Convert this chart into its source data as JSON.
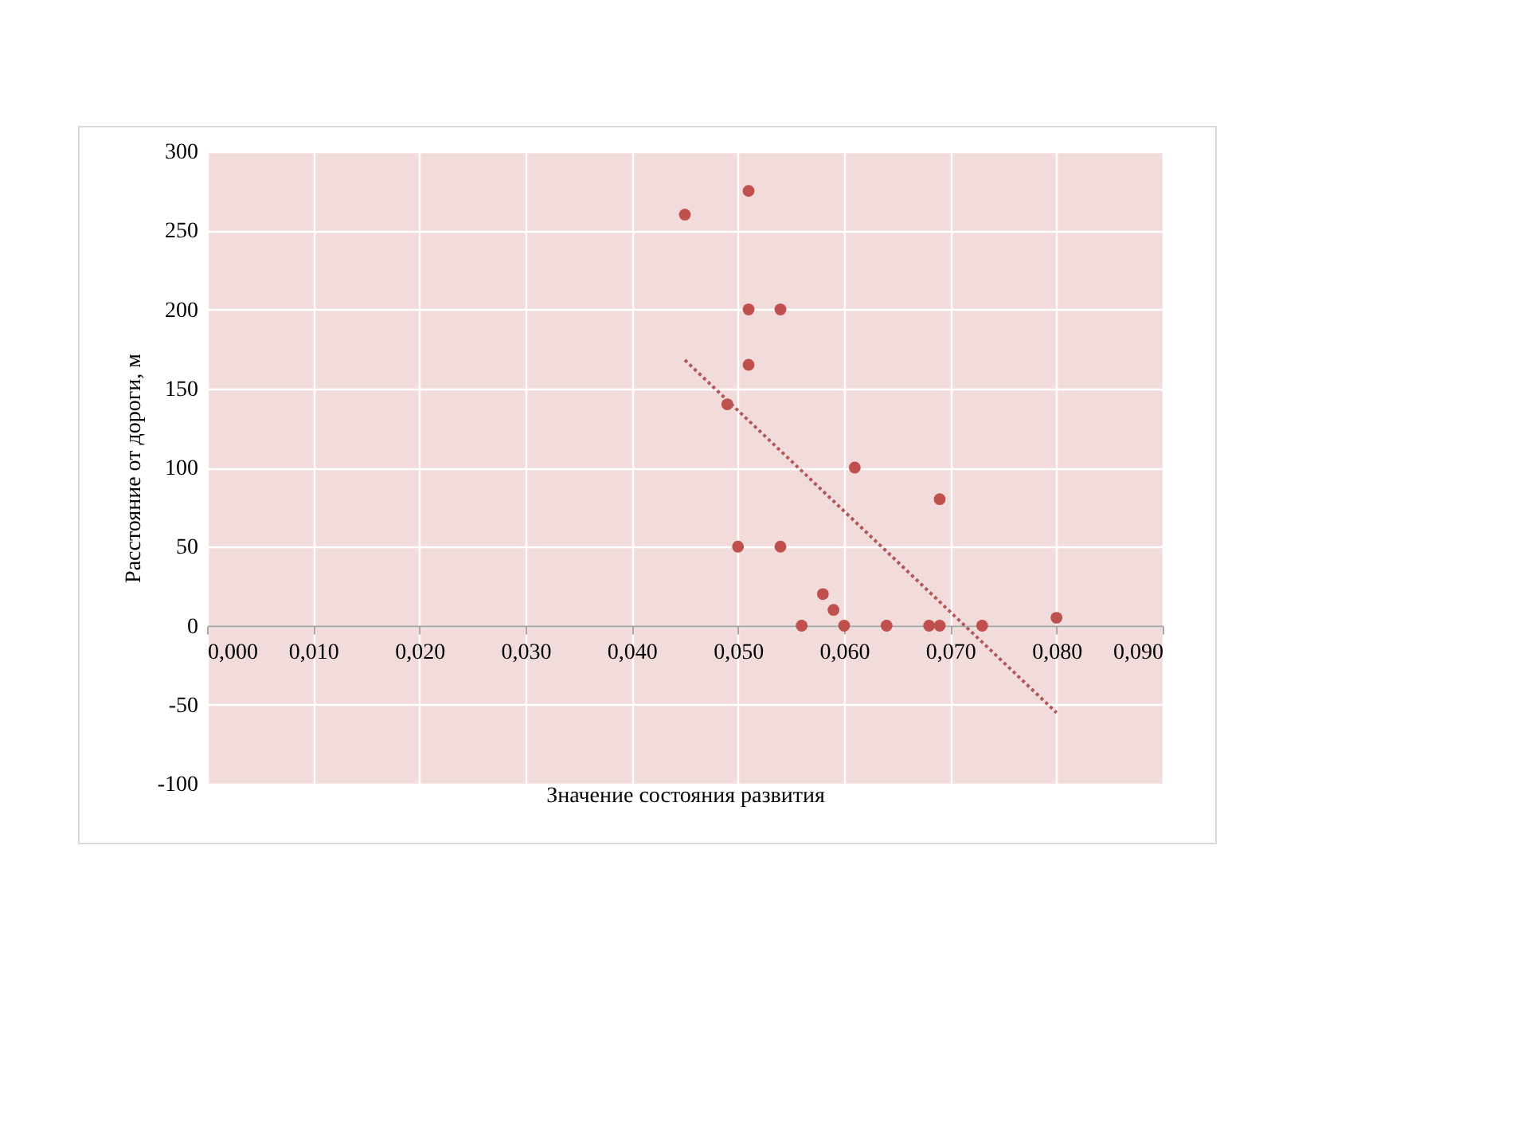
{
  "chart_data": {
    "type": "scatter",
    "xlabel": "Значение состояния развития",
    "ylabel": "Расстояние от дороги, м",
    "xlim": [
      0,
      0.09
    ],
    "ylim": [
      -100,
      300
    ],
    "xticks": [
      {
        "value": 0,
        "label": "0,000"
      },
      {
        "value": 0.01,
        "label": "0,010"
      },
      {
        "value": 0.02,
        "label": "0,020"
      },
      {
        "value": 0.03,
        "label": "0,030"
      },
      {
        "value": 0.04,
        "label": "0,040"
      },
      {
        "value": 0.05,
        "label": "0,050"
      },
      {
        "value": 0.06,
        "label": "0,060"
      },
      {
        "value": 0.07,
        "label": "0,070"
      },
      {
        "value": 0.08,
        "label": "0,080"
      },
      {
        "value": 0.09,
        "label": "0,090"
      }
    ],
    "yticks": [
      -100,
      -50,
      0,
      50,
      100,
      150,
      200,
      250,
      300
    ],
    "grid": true,
    "series": [
      {
        "marker": "circle",
        "color": "#c0504d",
        "x": [
          0.045,
          0.051,
          0.051,
          0.054,
          0.051,
          0.049,
          0.061,
          0.069,
          0.05,
          0.054,
          0.058,
          0.059,
          0.056,
          0.06,
          0.064,
          0.068,
          0.069,
          0.073,
          0.08
        ],
        "values": [
          260,
          275,
          200,
          200,
          165,
          140,
          100,
          80,
          50,
          50,
          20,
          10,
          0,
          0,
          0,
          0,
          0,
          0,
          5
        ]
      },
      {
        "type": "line",
        "color": "#b0575a",
        "line_style": "dotted",
        "x": [
          0.045,
          0.08
        ],
        "values": [
          168,
          -55
        ]
      }
    ]
  }
}
